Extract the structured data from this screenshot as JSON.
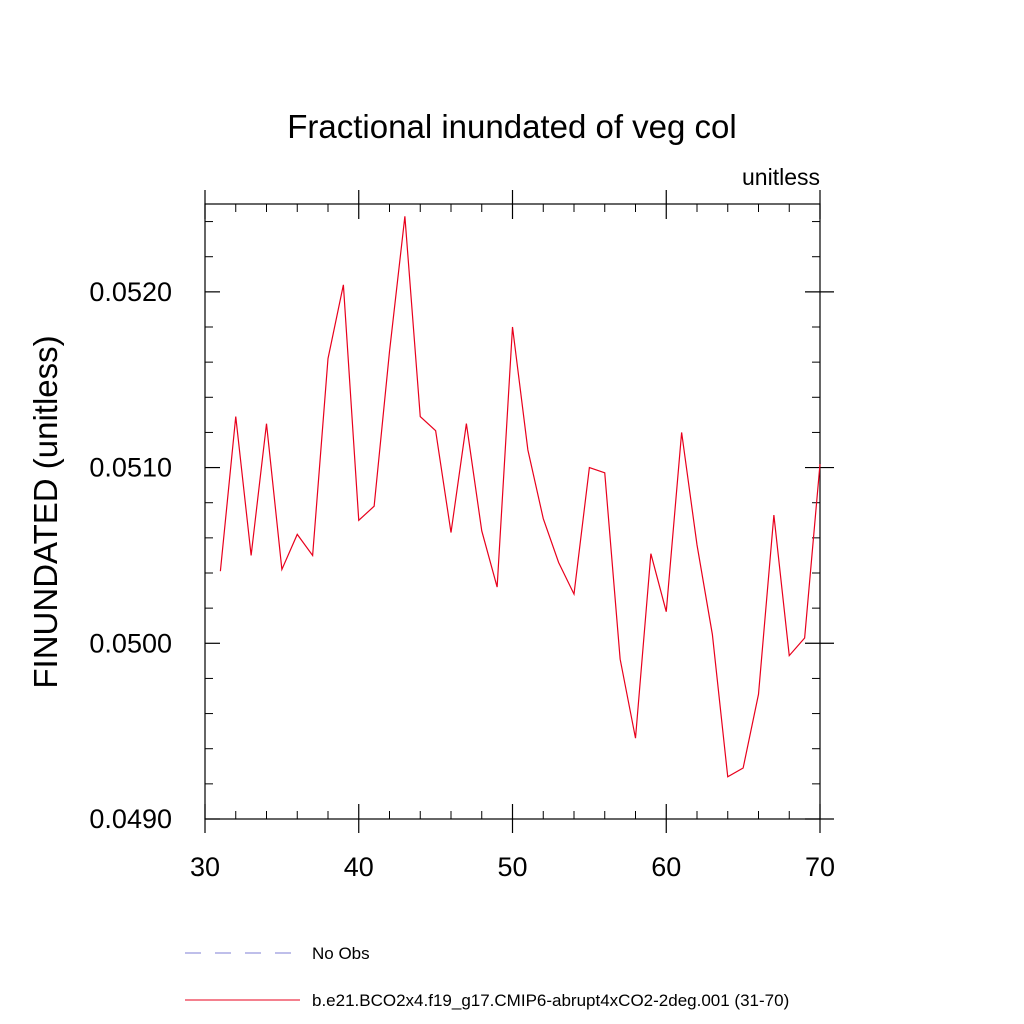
{
  "chart_data": {
    "type": "line",
    "title": "Fractional inundated of veg col",
    "units_label": "unitless",
    "xlabel": "",
    "ylabel": "FINUNDATED  (unitless)",
    "xlim": [
      30,
      70
    ],
    "ylim": [
      0.049,
      0.0525
    ],
    "x_ticks": [
      30,
      40,
      50,
      60,
      70
    ],
    "x_tick_labels": [
      "30",
      "40",
      "50",
      "60",
      "70"
    ],
    "y_ticks": [
      0.049,
      0.05,
      0.051,
      0.052
    ],
    "y_tick_labels": [
      "0.0490",
      "0.0500",
      "0.0510",
      "0.0520"
    ],
    "x_minor_step": 2,
    "y_minor_step": 0.0002,
    "series": [
      {
        "name": "b.e21.BCO2x4.f19_g17.CMIP6-abrupt4xCO2-2deg.001 (31-70)",
        "color": "#e8001c",
        "dash": "solid",
        "x": [
          31,
          32,
          33,
          34,
          35,
          36,
          37,
          38,
          39,
          40,
          41,
          42,
          43,
          44,
          45,
          46,
          47,
          48,
          49,
          50,
          51,
          52,
          53,
          54,
          55,
          56,
          57,
          58,
          59,
          60,
          61,
          62,
          63,
          64,
          65,
          66,
          67,
          68,
          69,
          70
        ],
        "values": [
          0.05041,
          0.05129,
          0.0505,
          0.05125,
          0.05042,
          0.05062,
          0.0505,
          0.05162,
          0.05204,
          0.0507,
          0.05078,
          0.05166,
          0.05243,
          0.05129,
          0.05121,
          0.05063,
          0.05125,
          0.05064,
          0.05032,
          0.0518,
          0.0511,
          0.05071,
          0.05046,
          0.05028,
          0.051,
          0.05097,
          0.04991,
          0.04946,
          0.05051,
          0.05018,
          0.0512,
          0.05056,
          0.05005,
          0.04924,
          0.04929,
          0.04971,
          0.05073,
          0.04993,
          0.05003,
          0.05102
        ]
      }
    ],
    "legend": [
      {
        "label": "No Obs",
        "color": "#7f7fd6",
        "dash": "dashed"
      },
      {
        "label": "b.e21.BCO2x4.f19_g17.CMIP6-abrupt4xCO2-2deg.001 (31-70)",
        "color": "#e8001c",
        "dash": "solid"
      }
    ],
    "legend_position": "bottom",
    "grid": false
  }
}
